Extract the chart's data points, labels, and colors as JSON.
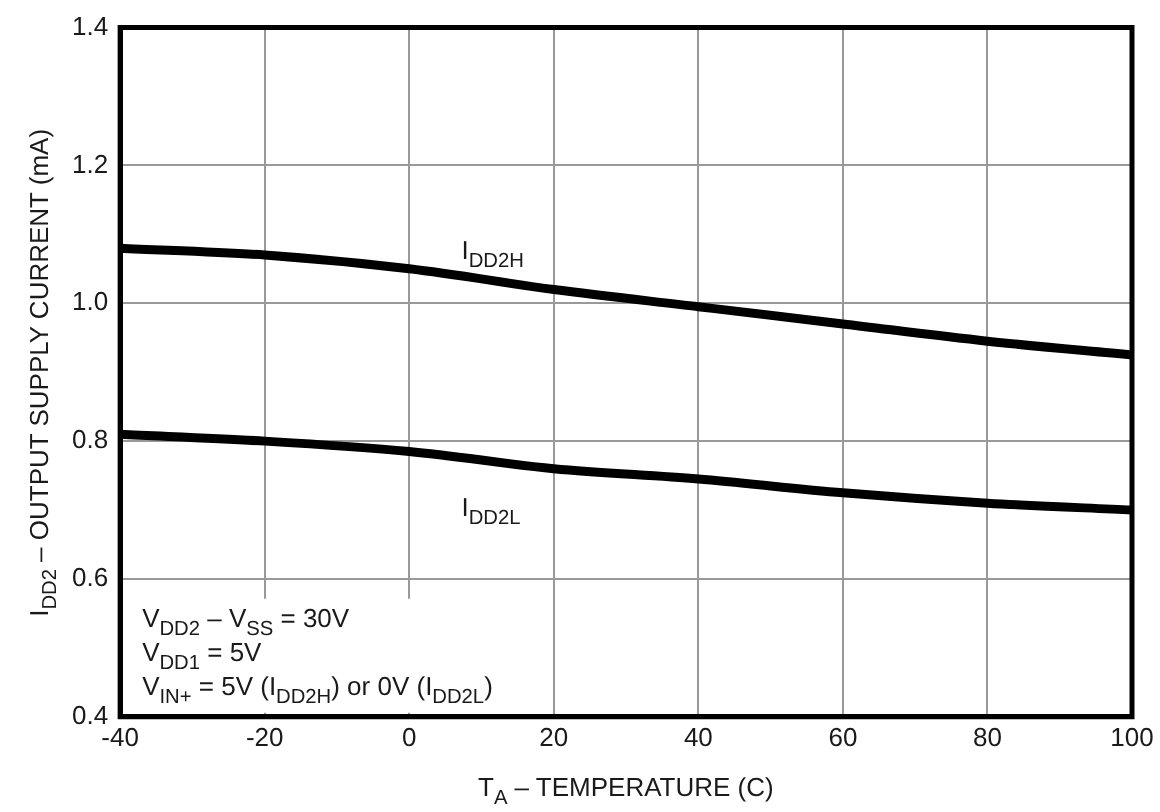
{
  "chart_data": {
    "type": "line",
    "xlabel": "T$_{A}$ – TEMPERATURE (C)",
    "ylabel": "I$_{DD2}$ – OUTPUT SUPPLY CURRENT (mA)",
    "x": [
      -40,
      -20,
      0,
      20,
      40,
      60,
      80,
      100
    ],
    "series": [
      {
        "name": "I$_{DD2H}$",
        "color": "#000000",
        "values": [
          1.08,
          1.07,
          1.05,
          1.02,
          0.995,
          0.97,
          0.945,
          0.925
        ]
      },
      {
        "name": "I$_{DD2L}$",
        "color": "#000000",
        "values": [
          0.81,
          0.8,
          0.785,
          0.76,
          0.745,
          0.725,
          0.71,
          0.7
        ]
      }
    ],
    "xlim": [
      -40,
      100
    ],
    "xticks": [
      -40,
      -20,
      0,
      20,
      40,
      60,
      80,
      100
    ],
    "ylim": [
      0.4,
      1.4
    ],
    "yticks": [
      0.4,
      0.6,
      0.8,
      {
        "value": 1.0,
        "label": "1.0"
      },
      1.2,
      1.4
    ],
    "annotations": [
      "V$_{DD2}$ – V$_{SS}$ = 30V",
      "V$_{DD1}$ = 5V",
      "V$_{IN+}$ = 5V (I$_{DD2H}$) or 0V (I$_{DD2L}$)"
    ],
    "grid": true,
    "legend": false,
    "marker": "none",
    "line_style": "solid"
  }
}
